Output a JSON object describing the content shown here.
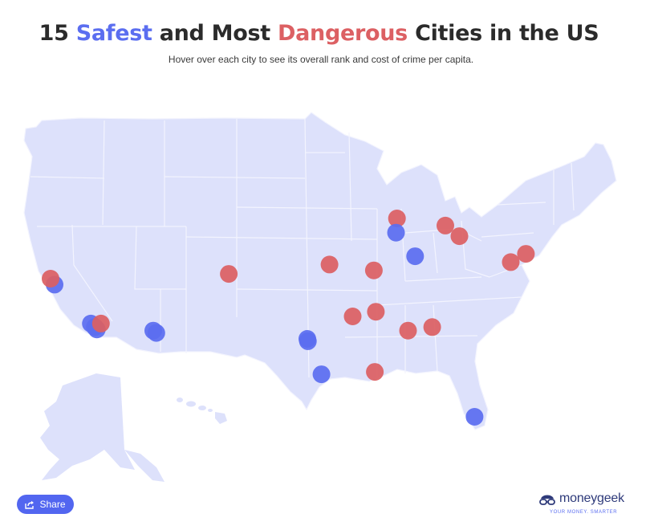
{
  "header": {
    "title_prefix": "15",
    "title_safe": "Safest",
    "title_mid": "and Most",
    "title_danger": "Dangerous",
    "title_suffix": "Cities in the US",
    "subtitle": "Hover over each city to see its overall rank and cost of crime per capita."
  },
  "colors": {
    "safe": "#5b6ef0",
    "dangerous": "#dc6063",
    "land": "#dde1fb",
    "borders": "#f3f4fe",
    "share_button": "#5266f0"
  },
  "share": {
    "label": "Share",
    "icon": "share-icon"
  },
  "brand": {
    "name": "moneygeek",
    "tagline": "YOUR MONEY. SMARTER",
    "icon": "moneygeek-logo-icon"
  },
  "cities": [
    {
      "id": "sf-bay-safe",
      "type": "safe",
      "lon": -121.9,
      "lat": 37.4
    },
    {
      "id": "norcal-danger",
      "type": "dangerous",
      "lon": -122.3,
      "lat": 37.9
    },
    {
      "id": "la-safe-1",
      "type": "safe",
      "lon": -118.3,
      "lat": 34.1
    },
    {
      "id": "la-safe-2",
      "type": "safe",
      "lon": -117.9,
      "lat": 33.8
    },
    {
      "id": "la-safe-3",
      "type": "safe",
      "lon": -117.7,
      "lat": 33.6
    },
    {
      "id": "san-bernardino-danger",
      "type": "dangerous",
      "lon": -117.3,
      "lat": 34.1
    },
    {
      "id": "phoenix-safe-1",
      "type": "safe",
      "lon": -112.1,
      "lat": 33.5
    },
    {
      "id": "phoenix-safe-2",
      "type": "safe",
      "lon": -111.8,
      "lat": 33.3
    },
    {
      "id": "pueblo-danger",
      "type": "dangerous",
      "lon": -104.6,
      "lat": 38.3
    },
    {
      "id": "dallas-safe-1",
      "type": "safe",
      "lon": -96.8,
      "lat": 32.8
    },
    {
      "id": "dallas-safe-2",
      "type": "safe",
      "lon": -96.75,
      "lat": 32.6
    },
    {
      "id": "houston-safe",
      "type": "safe",
      "lon": -95.4,
      "lat": 29.8
    },
    {
      "id": "kansas-city-danger",
      "type": "dangerous",
      "lon": -94.6,
      "lat": 39.1
    },
    {
      "id": "st-louis-danger",
      "type": "dangerous",
      "lon": -90.2,
      "lat": 38.6
    },
    {
      "id": "little-rock-danger",
      "type": "dangerous",
      "lon": -92.3,
      "lat": 34.7
    },
    {
      "id": "memphis-danger",
      "type": "dangerous",
      "lon": -90.0,
      "lat": 35.1
    },
    {
      "id": "new-orleans-danger",
      "type": "dangerous",
      "lon": -90.1,
      "lat": 30.0
    },
    {
      "id": "birmingham-danger",
      "type": "dangerous",
      "lon": -86.8,
      "lat": 33.5
    },
    {
      "id": "atlanta-danger",
      "type": "dangerous",
      "lon": -84.4,
      "lat": 33.8
    },
    {
      "id": "milwaukee-danger",
      "type": "dangerous",
      "lon": -87.9,
      "lat": 43.0
    },
    {
      "id": "chicago-safe",
      "type": "safe",
      "lon": -88.0,
      "lat": 41.8
    },
    {
      "id": "indianapolis-safe",
      "type": "safe",
      "lon": -86.1,
      "lat": 39.8
    },
    {
      "id": "detroit-danger",
      "type": "dangerous",
      "lon": -83.1,
      "lat": 42.4
    },
    {
      "id": "cleveland-danger",
      "type": "dangerous",
      "lon": -81.7,
      "lat": 41.5
    },
    {
      "id": "baltimore-danger",
      "type": "dangerous",
      "lon": -76.6,
      "lat": 39.3
    },
    {
      "id": "philadelphia-danger",
      "type": "dangerous",
      "lon": -75.1,
      "lat": 40.0
    },
    {
      "id": "miami-safe",
      "type": "safe",
      "lon": -80.2,
      "lat": 26.2
    }
  ]
}
